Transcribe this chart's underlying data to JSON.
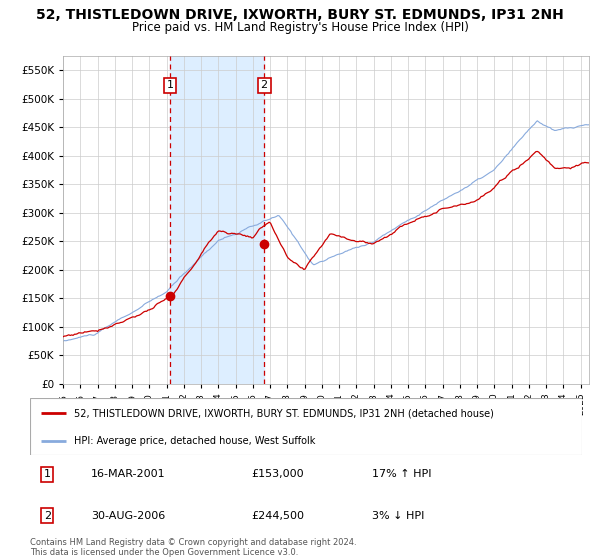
{
  "title": "52, THISTLEDOWN DRIVE, IXWORTH, BURY ST. EDMUNDS, IP31 2NH",
  "subtitle": "Price paid vs. HM Land Registry's House Price Index (HPI)",
  "title_fontsize": 10,
  "subtitle_fontsize": 8.5,
  "background_color": "#ffffff",
  "plot_bg_color": "#ffffff",
  "grid_color": "#cccccc",
  "red_line_color": "#cc0000",
  "blue_line_color": "#88aadd",
  "shade_color": "#ddeeff",
  "dashed_line_color": "#cc0000",
  "purchase1_date_num": 2001.21,
  "purchase1_price": 153000,
  "purchase2_date_num": 2006.66,
  "purchase2_price": 244500,
  "legend_label_red": "52, THISTLEDOWN DRIVE, IXWORTH, BURY ST. EDMUNDS, IP31 2NH (detached house)",
  "legend_label_blue": "HPI: Average price, detached house, West Suffolk",
  "annotation1_date": "16-MAR-2001",
  "annotation1_price": "£153,000",
  "annotation1_hpi": "17% ↑ HPI",
  "annotation2_date": "30-AUG-2006",
  "annotation2_price": "£244,500",
  "annotation2_hpi": "3% ↓ HPI",
  "footer": "Contains HM Land Registry data © Crown copyright and database right 2024.\nThis data is licensed under the Open Government Licence v3.0.",
  "ylim": [
    0,
    575000
  ],
  "yticks": [
    0,
    50000,
    100000,
    150000,
    200000,
    250000,
    300000,
    350000,
    400000,
    450000,
    500000,
    550000
  ],
  "xmin": 1995.0,
  "xmax": 2025.5
}
